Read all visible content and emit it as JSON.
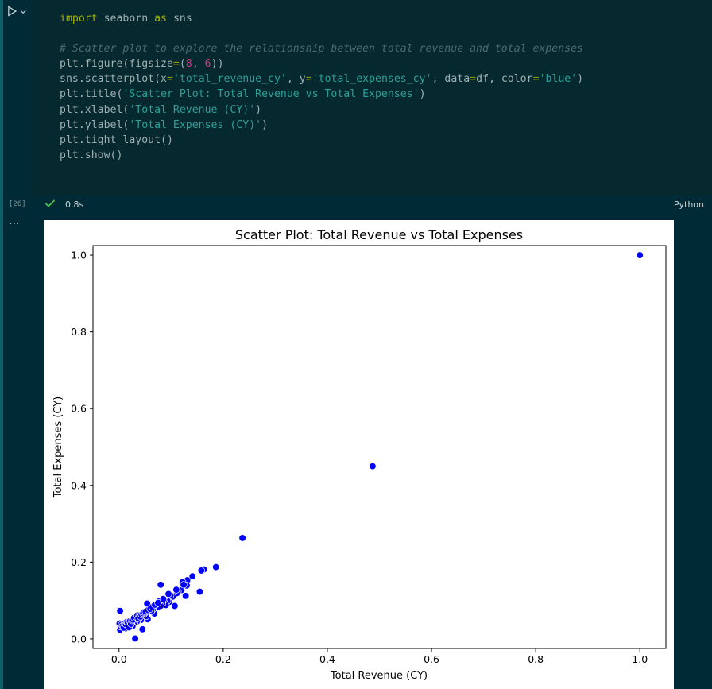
{
  "cell": {
    "execution_count": "[26]",
    "duration": "0.8s",
    "language": "Python",
    "status_icon": "check-icon",
    "run_icon": "play-icon",
    "output_menu_icon": "ellipsis-icon",
    "code_lines": [
      "import seaborn as sns",
      "",
      "# Scatter plot to explore the relationship between total revenue and total expenses",
      "plt.figure(figsize=(8, 6))",
      "sns.scatterplot(x='total_revenue_cy', y='total_expenses_cy', data=df, color='blue')",
      "plt.title('Scatter Plot: Total Revenue vs Total Expenses')",
      "plt.xlabel('Total Revenue (CY)')",
      "plt.ylabel('Total Expenses (CY)')",
      "plt.tight_layout()",
      "plt.show()"
    ]
  },
  "colors": {
    "background": "#002b36",
    "accent": "#0e5f66",
    "point": "#0000ff",
    "check": "#4ec94e"
  },
  "chart_data": {
    "type": "scatter",
    "title": "Scatter Plot: Total Revenue vs Total Expenses",
    "xlabel": "Total Revenue (CY)",
    "ylabel": "Total Expenses (CY)",
    "xlim": [
      -0.05,
      1.05
    ],
    "ylim": [
      -0.025,
      1.025
    ],
    "xticks": [
      "0.0",
      "0.2",
      "0.4",
      "0.6",
      "0.8",
      "1.0"
    ],
    "yticks": [
      "0.0",
      "0.2",
      "0.4",
      "0.6",
      "0.8",
      "1.0"
    ],
    "grid": false,
    "series": [
      {
        "x": [
          1.0,
          0.487,
          0.237,
          0.186,
          0.163,
          0.158,
          0.155,
          0.141,
          0.131,
          0.13,
          0.128,
          0.122,
          0.12,
          0.113,
          0.111,
          0.107,
          0.103,
          0.099,
          0.096,
          0.093,
          0.09,
          0.087,
          0.083,
          0.08,
          0.08,
          0.077,
          0.074,
          0.071,
          0.068,
          0.065,
          0.062,
          0.058,
          0.055,
          0.054,
          0.052,
          0.05,
          0.047,
          0.045,
          0.044,
          0.042,
          0.04,
          0.038,
          0.036,
          0.034,
          0.032,
          0.031,
          0.03,
          0.028,
          0.026,
          0.024,
          0.022,
          0.02,
          0.018,
          0.016,
          0.014,
          0.012,
          0.01,
          0.008,
          0.006,
          0.004,
          0.002,
          0.001,
          0.003,
          0.005,
          0.007,
          0.009,
          0.011,
          0.013,
          0.015,
          0.017,
          0.019,
          0.021,
          0.023,
          0.025,
          0.027,
          0.029,
          0.033,
          0.035,
          0.037,
          0.039,
          0.041,
          0.043,
          0.046,
          0.048,
          0.051,
          0.056,
          0.06,
          0.064,
          0.069,
          0.075,
          0.085,
          0.095,
          0.11,
          0.124,
          0.002
        ],
        "y": [
          1.0,
          0.45,
          0.263,
          0.187,
          0.181,
          0.178,
          0.123,
          0.163,
          0.153,
          0.139,
          0.112,
          0.148,
          0.127,
          0.123,
          0.119,
          0.086,
          0.11,
          0.113,
          0.096,
          0.099,
          0.088,
          0.102,
          0.092,
          0.141,
          0.086,
          0.098,
          0.082,
          0.09,
          0.066,
          0.077,
          0.072,
          0.08,
          0.051,
          0.092,
          0.059,
          0.068,
          0.063,
          0.025,
          0.058,
          0.049,
          0.06,
          0.052,
          0.047,
          0.045,
          0.053,
          0.001,
          0.043,
          0.039,
          0.033,
          0.041,
          0.036,
          0.038,
          0.034,
          0.029,
          0.031,
          0.027,
          0.036,
          0.028,
          0.03,
          0.026,
          0.024,
          0.04,
          0.032,
          0.037,
          0.034,
          0.029,
          0.041,
          0.038,
          0.044,
          0.042,
          0.03,
          0.046,
          0.039,
          0.048,
          0.05,
          0.055,
          0.057,
          0.061,
          0.054,
          0.062,
          0.058,
          0.064,
          0.067,
          0.07,
          0.071,
          0.075,
          0.078,
          0.083,
          0.089,
          0.094,
          0.104,
          0.117,
          0.128,
          0.141,
          0.073
        ]
      }
    ]
  }
}
